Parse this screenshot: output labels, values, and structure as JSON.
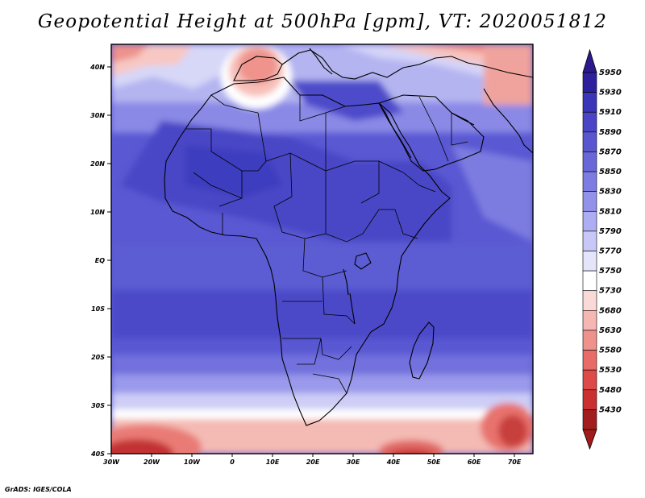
{
  "title": "Geopotential Height at 500hPa [gpm], VT: 2020051812",
  "credit": "GrADS: IGES/COLA",
  "map": {
    "lat_labels": [
      "40N",
      "30N",
      "20N",
      "10N",
      "EQ",
      "10S",
      "20S",
      "30S",
      "40S"
    ],
    "lon_labels": [
      "30W",
      "20W",
      "10W",
      "0",
      "10E",
      "20E",
      "30E",
      "40E",
      "50E",
      "60E",
      "70E"
    ]
  },
  "colorbar": {
    "labels": [
      "5950",
      "5930",
      "5910",
      "5890",
      "5870",
      "5850",
      "5830",
      "5810",
      "5790",
      "5770",
      "5750",
      "5730",
      "5680",
      "5630",
      "5580",
      "5530",
      "5480",
      "5430"
    ],
    "colors": [
      "#2e1f9c",
      "#3b35b9",
      "#4a44c6",
      "#5a56d0",
      "#6a68d9",
      "#7d7ce2",
      "#9392ea",
      "#acadf2",
      "#c7c8f7",
      "#e4e5fb",
      "#ffffff",
      "#fbd9d6",
      "#f6b6b1",
      "#f0928c",
      "#e96b67",
      "#dd4a48",
      "#c9302f",
      "#a21d1d"
    ],
    "top_color": "#2a1a8e",
    "bottom_color": "#a01b1b"
  },
  "fill_colors": {
    "deep": "#3f3dc0",
    "mid": "#5554d0",
    "light": "#6e6ddc",
    "pale": "#9696ea",
    "verypale": "#c8c8f5",
    "white": "#ffffff",
    "pink": "#f6bcb6",
    "salmon": "#ee8f88",
    "red": "#df5a55",
    "darkred": "#b72a28"
  }
}
